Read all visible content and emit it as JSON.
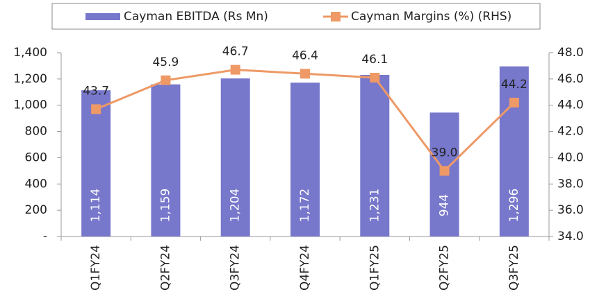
{
  "chart_data": {
    "type": "bar-line",
    "categories": [
      "Q1FY24",
      "Q2FY24",
      "Q3FY24",
      "Q4FY24",
      "Q1FY25",
      "Q2FY25",
      "Q3FY25"
    ],
    "series": [
      {
        "name": "Cayman EBITDA (Rs Mn)",
        "type": "bar",
        "color": "#7777cc",
        "values": [
          1114,
          1159,
          1204,
          1172,
          1231,
          944,
          1296
        ],
        "value_labels": [
          "1,114",
          "1,159",
          "1,204",
          "1,172",
          "1,231",
          "944",
          "1,296"
        ]
      },
      {
        "name": "Cayman Margins (%) (RHS)",
        "type": "line",
        "axis": "y2",
        "color": "#ee9966",
        "values": [
          43.7,
          45.9,
          46.7,
          46.4,
          46.1,
          39.0,
          44.2
        ],
        "value_labels": [
          "43.7",
          "45.9",
          "46.7",
          "46.4",
          "46.1",
          "39.0",
          "44.2"
        ]
      }
    ],
    "ylim": [
      0,
      1400
    ],
    "yticks": [
      {
        "value": 0,
        "label": "-"
      },
      200,
      400,
      600,
      800,
      {
        "value": 1000,
        "label": "1,000"
      },
      {
        "value": 1200,
        "label": "1,200"
      },
      {
        "value": 1400,
        "label": "1,400"
      }
    ],
    "y2lim": [
      34,
      48
    ],
    "y2ticks": [
      {
        "value": 34,
        "label": "34.0"
      },
      {
        "value": 36,
        "label": "36.0"
      },
      {
        "value": 38,
        "label": "38.0"
      },
      {
        "value": 40,
        "label": "40.0"
      },
      {
        "value": 42,
        "label": "42.0"
      },
      {
        "value": 44,
        "label": "44.0"
      },
      {
        "value": 46,
        "label": "46.0"
      },
      {
        "value": 48,
        "label": "48.0"
      }
    ],
    "grid": false,
    "legend": "top"
  }
}
